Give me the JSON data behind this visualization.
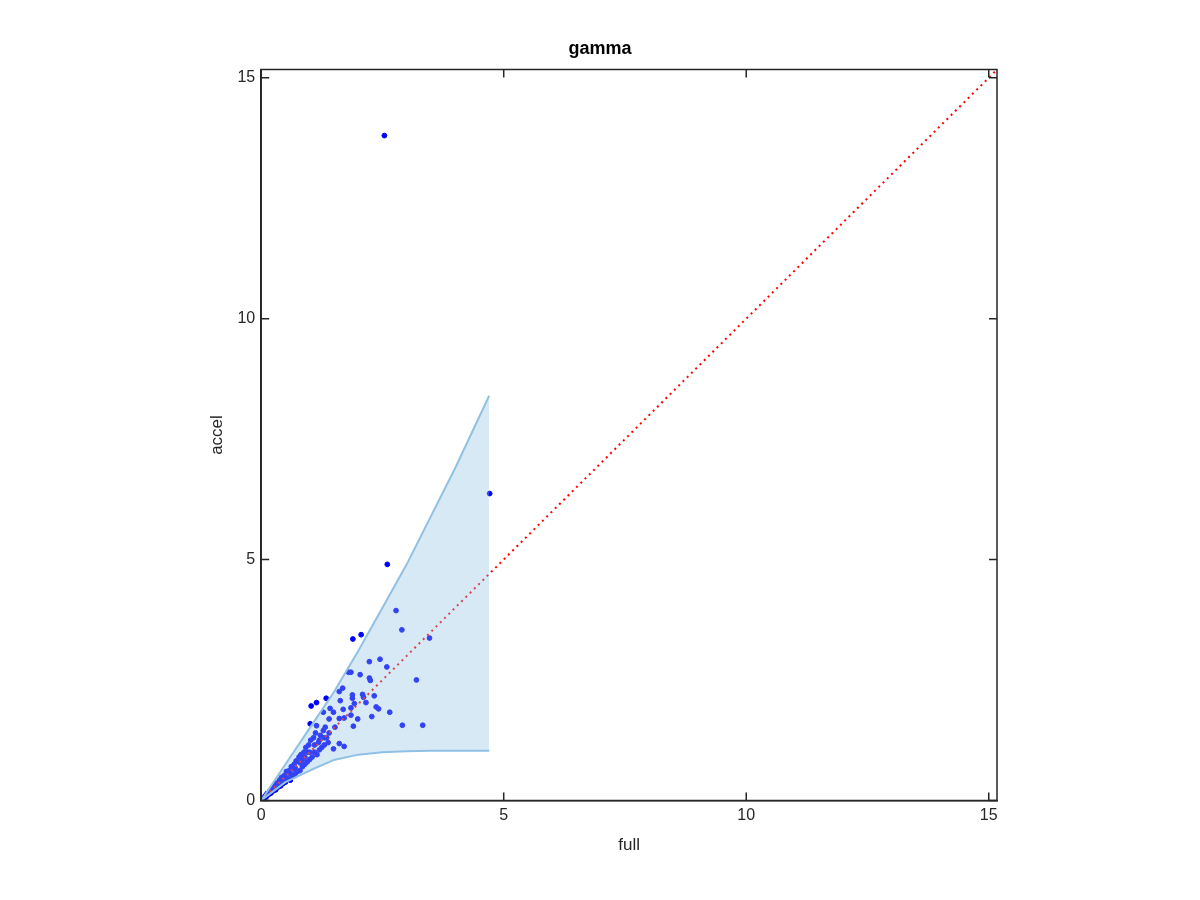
{
  "chart_data": {
    "type": "scatter",
    "title": "gamma",
    "xlabel": "full",
    "ylabel": "accel",
    "xlim": [
      0,
      15.17
    ],
    "ylim": [
      0,
      15.17
    ],
    "xticks": [
      0,
      5,
      10,
      15
    ],
    "yticks": [
      0,
      5,
      10,
      15
    ],
    "series": [
      {
        "type": "line",
        "color": "#8fc1e5",
        "x": [
          0,
          0.5,
          1,
          1.5,
          2,
          2.5,
          3,
          3.5,
          4,
          4.7
        ],
        "values": [
          0,
          0.38,
          0.62,
          0.84,
          0.95,
          1.0,
          1.02,
          1.03,
          1.03,
          1.03
        ]
      },
      {
        "type": "area",
        "color": "#8fc1e5",
        "x": [
          0,
          0.5,
          1,
          1.5,
          2,
          2.5,
          3,
          3.5,
          4,
          4.7
        ],
        "values": [
          0,
          0.75,
          1.5,
          2.25,
          3.1,
          4.0,
          4.9,
          5.9,
          6.9,
          8.4
        ]
      },
      {
        "type": "line",
        "color": "#ff0000",
        "line_style": "dotted",
        "x": [
          0,
          15.17
        ],
        "values": [
          0,
          15.17
        ]
      },
      {
        "color": "#0000ff",
        "marker": "circle",
        "x": [
          2.54,
          4.71,
          2.6,
          2.78,
          2.9,
          3.47,
          1.89,
          2.06,
          2.23,
          2.45,
          2.59,
          3.2,
          1.8,
          1.85,
          2.04,
          2.23,
          2.25,
          1.68,
          1.61,
          1.88,
          1.88,
          2.09,
          2.11,
          2.33,
          1.63,
          1.34,
          1.03,
          1.14,
          1.85,
          1.92,
          2.16,
          2.37,
          2.42,
          2.65,
          2.28,
          1.69,
          1.42,
          1.28,
          1.49,
          1.4,
          1.61,
          1.71,
          1.85,
          1.9,
          1.99,
          2.91,
          3.33,
          1.01,
          1.14,
          1.32,
          1.52,
          1.61,
          1.71,
          1.49,
          0.05,
          0.08,
          0.1,
          0.12,
          0.15,
          0.18,
          0.2,
          0.22,
          0.25,
          0.28,
          0.3,
          0.32,
          0.35,
          0.38,
          0.4,
          0.42,
          0.45,
          0.48,
          0.5,
          0.52,
          0.55,
          0.58,
          0.6,
          0.62,
          0.65,
          0.68,
          0.7,
          0.72,
          0.75,
          0.78,
          0.8,
          0.82,
          0.85,
          0.88,
          0.9,
          0.92,
          0.95,
          0.98,
          1.0,
          1.02,
          1.05,
          1.08,
          1.1,
          1.12,
          1.15,
          1.18,
          1.2,
          1.22,
          1.25,
          1.28,
          1.3,
          1.35,
          1.38,
          1.4,
          0.6,
          0.7,
          0.8,
          0.9,
          1.0,
          0.5,
          1.1,
          1.2,
          1.3,
          0.95,
          0.85,
          0.65,
          0.45
        ],
        "values": [
          13.8,
          6.37,
          4.9,
          3.94,
          3.54,
          3.37,
          3.35,
          3.44,
          2.88,
          2.93,
          2.77,
          2.5,
          2.66,
          2.66,
          2.61,
          2.54,
          2.49,
          2.33,
          2.26,
          2.19,
          2.12,
          2.2,
          2.14,
          2.17,
          2.07,
          2.12,
          1.96,
          2.03,
          1.92,
          2.01,
          2.03,
          1.94,
          1.9,
          1.83,
          1.74,
          1.89,
          1.91,
          1.83,
          1.83,
          1.69,
          1.7,
          1.71,
          1.77,
          1.54,
          1.69,
          1.56,
          1.56,
          1.59,
          1.55,
          1.52,
          1.52,
          1.18,
          1.12,
          1.07,
          0.04,
          0.09,
          0.07,
          0.14,
          0.12,
          0.2,
          0.15,
          0.25,
          0.2,
          0.3,
          0.22,
          0.36,
          0.28,
          0.42,
          0.3,
          0.48,
          0.35,
          0.52,
          0.38,
          0.6,
          0.45,
          0.62,
          0.42,
          0.7,
          0.5,
          0.75,
          0.55,
          0.82,
          0.6,
          0.9,
          0.62,
          0.95,
          0.7,
          1.0,
          0.75,
          1.1,
          0.8,
          1.15,
          0.85,
          1.25,
          0.9,
          1.3,
          1.0,
          1.4,
          0.95,
          1.2,
          1.05,
          1.35,
          1.1,
          1.45,
          1.15,
          1.3,
          1.2,
          1.4,
          0.55,
          0.68,
          0.78,
          0.9,
          1.0,
          0.5,
          1.15,
          1.25,
          1.3,
          1.0,
          0.85,
          0.65,
          0.45
        ]
      }
    ]
  }
}
